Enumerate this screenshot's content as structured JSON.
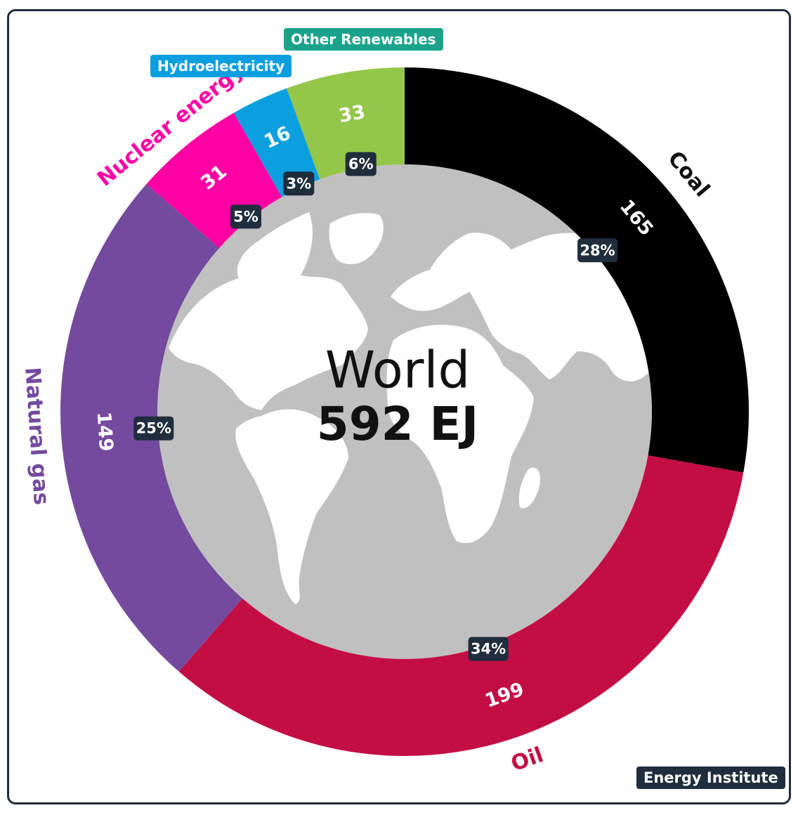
{
  "chart_data": {
    "type": "pie",
    "center": {
      "title": "World",
      "total": "592 EJ"
    },
    "slices": [
      {
        "name": "Coal",
        "value": 165,
        "value_label": "165",
        "percent_label": "28%",
        "color": "#000000",
        "label_color": "#111111"
      },
      {
        "name": "Oil",
        "value": 199,
        "value_label": "199",
        "percent_label": "34%",
        "color": "#c30e44",
        "label_color": "#c30e44"
      },
      {
        "name": "Natural gas",
        "value": 149,
        "value_label": "149",
        "percent_label": "25%",
        "color": "#744a9e",
        "label_color": "#744a9e"
      },
      {
        "name": "Nuclear energy",
        "value": 31,
        "value_label": "31",
        "percent_label": "5%",
        "color": "#fe00a4",
        "label_color": "#fe00a4"
      },
      {
        "name": "Hydroelectricity",
        "value": 16,
        "value_label": "16",
        "percent_label": "3%",
        "color": "#0b9fe0",
        "label_color": "#ffffff"
      },
      {
        "name": "Other Renewables",
        "value": 33,
        "value_label": "33",
        "percent_label": "6%",
        "color": "#94c64a",
        "label_color": "#ffffff"
      }
    ],
    "colors": {
      "center_disc": "#c0c0c0",
      "land": "#ffffff",
      "percent_badge": "#1f2d3d"
    }
  },
  "source": "Energy Institute"
}
